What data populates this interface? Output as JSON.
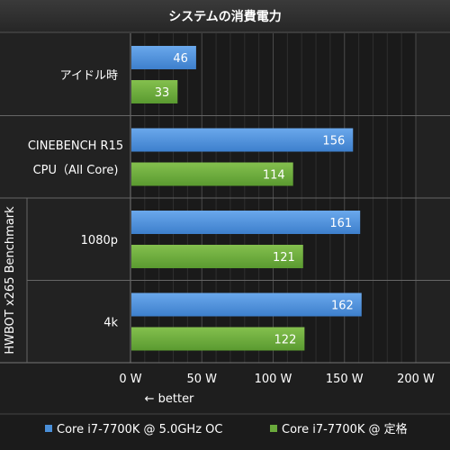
{
  "chart_data": {
    "type": "bar",
    "orientation": "horizontal",
    "title": "システムの消費電力",
    "xlim": [
      0,
      200
    ],
    "xticks": [
      "0 W",
      "50 W",
      "100 W",
      "150 W",
      "200 W"
    ],
    "xtick_values": [
      0,
      50,
      100,
      150,
      200
    ],
    "axis_note": "← better",
    "grid": true,
    "legend_position": "bottom",
    "groups": [
      {
        "categories": [
          {
            "label_lines": [
              "アイドル時"
            ],
            "values": [
              46,
              33
            ]
          }
        ]
      },
      {
        "categories": [
          {
            "label_lines": [
              "CINEBENCH R15",
              "CPU（All Core)"
            ],
            "values": [
              156,
              114
            ]
          }
        ]
      },
      {
        "group_label": "HWBOT x265 Benchmark",
        "categories": [
          {
            "label_lines": [
              "1080p"
            ],
            "values": [
              161,
              121
            ]
          },
          {
            "label_lines": [
              "4k"
            ],
            "values": [
              162,
              122
            ]
          }
        ]
      }
    ],
    "series": [
      {
        "name": "Core i7-7700K @ 5.0GHz OC",
        "color": "#4a8fd8"
      },
      {
        "name": "Core i7-7700K @ 定格",
        "color": "#6aaa3c"
      }
    ]
  }
}
